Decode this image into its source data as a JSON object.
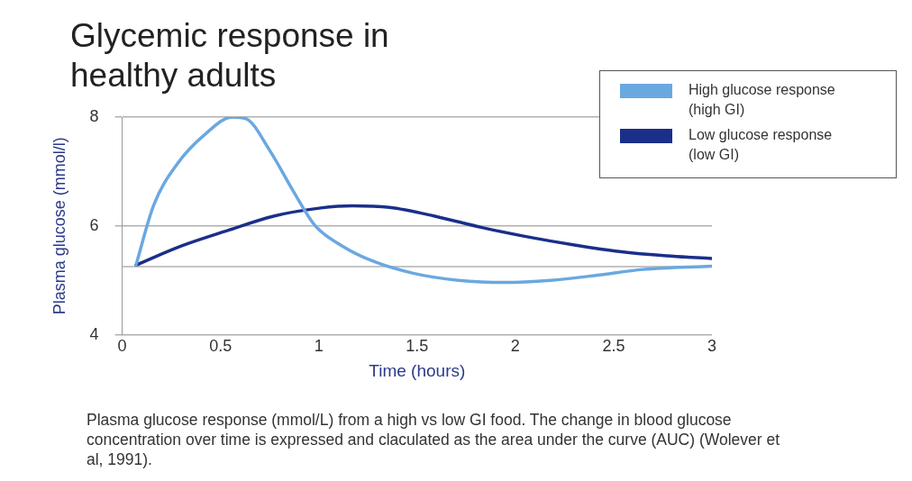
{
  "chart_data": {
    "type": "line",
    "title": "Glycemic response in healthy adults",
    "xlabel": "Time (hours)",
    "ylabel": "Plasma glucose (mmol/l)",
    "xlim": [
      0,
      3
    ],
    "xticks": [
      0,
      0.5,
      1,
      1.5,
      2,
      2.5,
      3
    ],
    "ylim": [
      4,
      8
    ],
    "yticks": [
      4,
      6,
      8
    ],
    "grid": "y",
    "legend": "top right",
    "marker": "none",
    "line_style": "solid",
    "ref_lines": [
      {
        "axis": "y",
        "value": 5.25,
        "color": "#b0b0b0"
      }
    ],
    "series": [
      {
        "name": "High glucose response (high GI)",
        "color": "#6aa8e0",
        "x": [
          0.07,
          0.16,
          0.28,
          0.42,
          0.56,
          0.63,
          0.75,
          0.87,
          0.98,
          1.12,
          1.27,
          1.48,
          1.71,
          1.95,
          2.18,
          2.41,
          2.65,
          3.0
        ],
        "values": [
          5.28,
          6.38,
          7.14,
          7.68,
          8.0,
          7.97,
          7.39,
          6.64,
          6.01,
          5.63,
          5.36,
          5.13,
          5.0,
          4.96,
          5.0,
          5.09,
          5.2,
          5.26
        ]
      },
      {
        "name": "Low glucose response (low GI)",
        "color": "#1a2f8a",
        "x": [
          0.07,
          0.3,
          0.54,
          0.77,
          1.01,
          1.17,
          1.36,
          1.59,
          1.83,
          2.06,
          2.3,
          2.53,
          2.77,
          3.0
        ],
        "values": [
          5.28,
          5.63,
          5.92,
          6.18,
          6.33,
          6.37,
          6.34,
          6.18,
          5.97,
          5.8,
          5.65,
          5.53,
          5.45,
          5.4
        ]
      }
    ],
    "annotations": [
      "Plasma glucose response (mmol/L) from a high vs low GI food. The change in blood glucose concentration over time is expressed and claculated as the area under the curve (AUC) (Wolever et al, 1991)."
    ]
  }
}
